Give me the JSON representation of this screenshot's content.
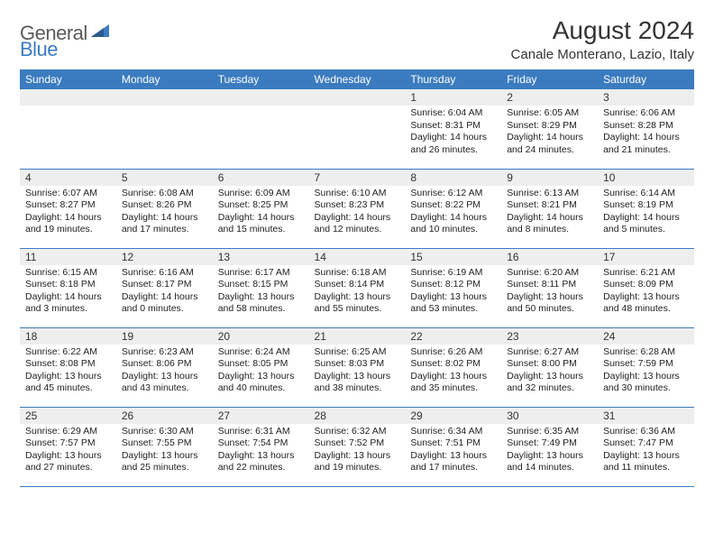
{
  "logo": {
    "general": "General",
    "blue": "Blue"
  },
  "title": "August 2024",
  "location": "Canale Monterano, Lazio, Italy",
  "colors": {
    "accent": "#3b7bbf",
    "header_bg": "#3b7bbf",
    "header_text": "#ffffff",
    "daynum_bg": "#eeeeee",
    "text": "#333333",
    "border": "#3b7bbf"
  },
  "day_headers": [
    "Sunday",
    "Monday",
    "Tuesday",
    "Wednesday",
    "Thursday",
    "Friday",
    "Saturday"
  ],
  "weeks": [
    [
      null,
      null,
      null,
      null,
      {
        "n": "1",
        "sr": "Sunrise: 6:04 AM",
        "ss": "Sunset: 8:31 PM",
        "dl": "Daylight: 14 hours and 26 minutes."
      },
      {
        "n": "2",
        "sr": "Sunrise: 6:05 AM",
        "ss": "Sunset: 8:29 PM",
        "dl": "Daylight: 14 hours and 24 minutes."
      },
      {
        "n": "3",
        "sr": "Sunrise: 6:06 AM",
        "ss": "Sunset: 8:28 PM",
        "dl": "Daylight: 14 hours and 21 minutes."
      }
    ],
    [
      {
        "n": "4",
        "sr": "Sunrise: 6:07 AM",
        "ss": "Sunset: 8:27 PM",
        "dl": "Daylight: 14 hours and 19 minutes."
      },
      {
        "n": "5",
        "sr": "Sunrise: 6:08 AM",
        "ss": "Sunset: 8:26 PM",
        "dl": "Daylight: 14 hours and 17 minutes."
      },
      {
        "n": "6",
        "sr": "Sunrise: 6:09 AM",
        "ss": "Sunset: 8:25 PM",
        "dl": "Daylight: 14 hours and 15 minutes."
      },
      {
        "n": "7",
        "sr": "Sunrise: 6:10 AM",
        "ss": "Sunset: 8:23 PM",
        "dl": "Daylight: 14 hours and 12 minutes."
      },
      {
        "n": "8",
        "sr": "Sunrise: 6:12 AM",
        "ss": "Sunset: 8:22 PM",
        "dl": "Daylight: 14 hours and 10 minutes."
      },
      {
        "n": "9",
        "sr": "Sunrise: 6:13 AM",
        "ss": "Sunset: 8:21 PM",
        "dl": "Daylight: 14 hours and 8 minutes."
      },
      {
        "n": "10",
        "sr": "Sunrise: 6:14 AM",
        "ss": "Sunset: 8:19 PM",
        "dl": "Daylight: 14 hours and 5 minutes."
      }
    ],
    [
      {
        "n": "11",
        "sr": "Sunrise: 6:15 AM",
        "ss": "Sunset: 8:18 PM",
        "dl": "Daylight: 14 hours and 3 minutes."
      },
      {
        "n": "12",
        "sr": "Sunrise: 6:16 AM",
        "ss": "Sunset: 8:17 PM",
        "dl": "Daylight: 14 hours and 0 minutes."
      },
      {
        "n": "13",
        "sr": "Sunrise: 6:17 AM",
        "ss": "Sunset: 8:15 PM",
        "dl": "Daylight: 13 hours and 58 minutes."
      },
      {
        "n": "14",
        "sr": "Sunrise: 6:18 AM",
        "ss": "Sunset: 8:14 PM",
        "dl": "Daylight: 13 hours and 55 minutes."
      },
      {
        "n": "15",
        "sr": "Sunrise: 6:19 AM",
        "ss": "Sunset: 8:12 PM",
        "dl": "Daylight: 13 hours and 53 minutes."
      },
      {
        "n": "16",
        "sr": "Sunrise: 6:20 AM",
        "ss": "Sunset: 8:11 PM",
        "dl": "Daylight: 13 hours and 50 minutes."
      },
      {
        "n": "17",
        "sr": "Sunrise: 6:21 AM",
        "ss": "Sunset: 8:09 PM",
        "dl": "Daylight: 13 hours and 48 minutes."
      }
    ],
    [
      {
        "n": "18",
        "sr": "Sunrise: 6:22 AM",
        "ss": "Sunset: 8:08 PM",
        "dl": "Daylight: 13 hours and 45 minutes."
      },
      {
        "n": "19",
        "sr": "Sunrise: 6:23 AM",
        "ss": "Sunset: 8:06 PM",
        "dl": "Daylight: 13 hours and 43 minutes."
      },
      {
        "n": "20",
        "sr": "Sunrise: 6:24 AM",
        "ss": "Sunset: 8:05 PM",
        "dl": "Daylight: 13 hours and 40 minutes."
      },
      {
        "n": "21",
        "sr": "Sunrise: 6:25 AM",
        "ss": "Sunset: 8:03 PM",
        "dl": "Daylight: 13 hours and 38 minutes."
      },
      {
        "n": "22",
        "sr": "Sunrise: 6:26 AM",
        "ss": "Sunset: 8:02 PM",
        "dl": "Daylight: 13 hours and 35 minutes."
      },
      {
        "n": "23",
        "sr": "Sunrise: 6:27 AM",
        "ss": "Sunset: 8:00 PM",
        "dl": "Daylight: 13 hours and 32 minutes."
      },
      {
        "n": "24",
        "sr": "Sunrise: 6:28 AM",
        "ss": "Sunset: 7:59 PM",
        "dl": "Daylight: 13 hours and 30 minutes."
      }
    ],
    [
      {
        "n": "25",
        "sr": "Sunrise: 6:29 AM",
        "ss": "Sunset: 7:57 PM",
        "dl": "Daylight: 13 hours and 27 minutes."
      },
      {
        "n": "26",
        "sr": "Sunrise: 6:30 AM",
        "ss": "Sunset: 7:55 PM",
        "dl": "Daylight: 13 hours and 25 minutes."
      },
      {
        "n": "27",
        "sr": "Sunrise: 6:31 AM",
        "ss": "Sunset: 7:54 PM",
        "dl": "Daylight: 13 hours and 22 minutes."
      },
      {
        "n": "28",
        "sr": "Sunrise: 6:32 AM",
        "ss": "Sunset: 7:52 PM",
        "dl": "Daylight: 13 hours and 19 minutes."
      },
      {
        "n": "29",
        "sr": "Sunrise: 6:34 AM",
        "ss": "Sunset: 7:51 PM",
        "dl": "Daylight: 13 hours and 17 minutes."
      },
      {
        "n": "30",
        "sr": "Sunrise: 6:35 AM",
        "ss": "Sunset: 7:49 PM",
        "dl": "Daylight: 13 hours and 14 minutes."
      },
      {
        "n": "31",
        "sr": "Sunrise: 6:36 AM",
        "ss": "Sunset: 7:47 PM",
        "dl": "Daylight: 13 hours and 11 minutes."
      }
    ]
  ]
}
